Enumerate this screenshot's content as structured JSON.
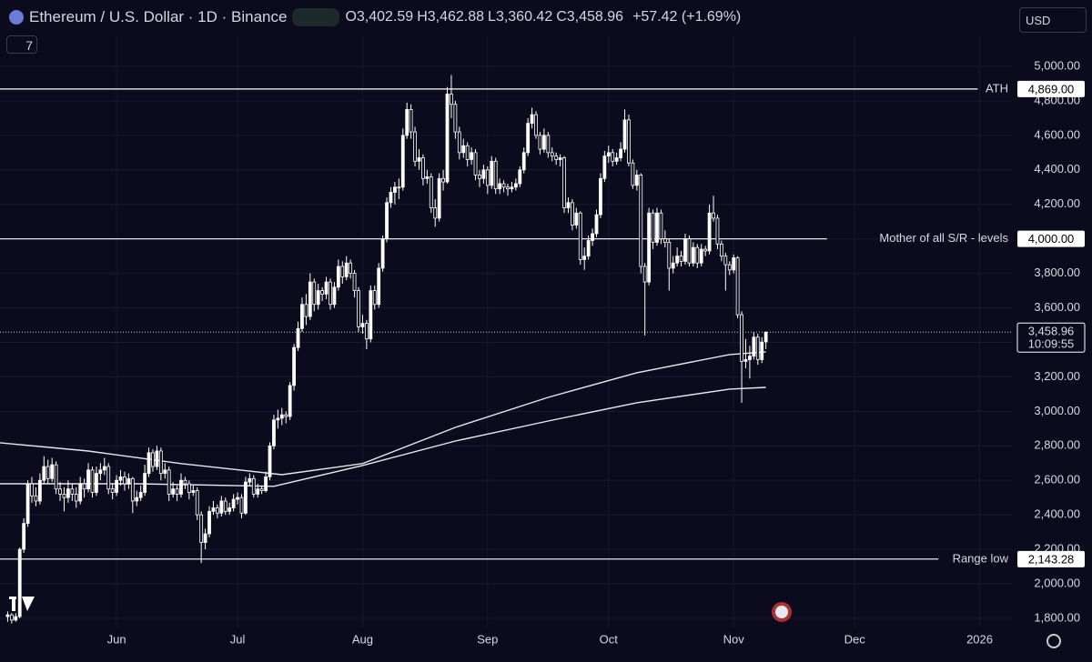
{
  "header": {
    "symbol": "Ethereum / U.S. Dollar · 1D · Binance",
    "ohlc": [
      {
        "key": "O",
        "value": "3,402.59"
      },
      {
        "key": "H",
        "value": "3,462.88"
      },
      {
        "key": "L",
        "value": "3,360.42"
      },
      {
        "key": "C",
        "value": "3,458.96"
      }
    ],
    "change": "+57.42 (+1.69%)",
    "currency": "USD",
    "indicators": "7"
  },
  "chart_data": {
    "type": "candlestick",
    "up_color": "#ffffff",
    "down_color": "#ffffff",
    "grid": true,
    "xlim": [
      -1.9,
      249
    ],
    "xticks": [
      {
        "value": 27,
        "label": "Jun"
      },
      {
        "value": 57,
        "label": "Jul"
      },
      {
        "value": 88,
        "label": "Aug"
      },
      {
        "value": 119,
        "label": "Sep"
      },
      {
        "value": 149,
        "label": "Oct"
      },
      {
        "value": 180,
        "label": "Nov"
      },
      {
        "value": 210,
        "label": "Dec"
      },
      {
        "value": 241,
        "label": "2026"
      }
    ],
    "ylim": [
      1747,
      5174
    ],
    "yticks": [
      {
        "value": 1800,
        "label": "1,800.00"
      },
      {
        "value": 2000,
        "label": "2,000.00"
      },
      {
        "value": 2200,
        "label": "2,200.00"
      },
      {
        "value": 2400,
        "label": "2,400.00"
      },
      {
        "value": 2600,
        "label": "2,600.00"
      },
      {
        "value": 2800,
        "label": "2,800.00"
      },
      {
        "value": 3000,
        "label": "3,000.00"
      },
      {
        "value": 3200,
        "label": "3,200.00"
      },
      {
        "value": 3400,
        "label": "3,400.00"
      },
      {
        "value": 3600,
        "label": "3,600.00"
      },
      {
        "value": 3800,
        "label": "3,800.00"
      },
      {
        "value": 4000,
        "label": "4,000.00"
      },
      {
        "value": 4200,
        "label": "4,200.00"
      },
      {
        "value": 4400,
        "label": "4,400.00"
      },
      {
        "value": 4600,
        "label": "4,600.00"
      },
      {
        "value": 4800,
        "label": "4,800.00"
      },
      {
        "value": 5000,
        "label": "5,000.00"
      }
    ],
    "candles": [
      [
        1810,
        1840,
        1780,
        1820
      ],
      [
        1820,
        1830,
        1770,
        1790
      ],
      [
        1790,
        1830,
        1780,
        1810
      ],
      [
        1810,
        2210,
        1800,
        2200
      ],
      [
        2200,
        2380,
        2180,
        2350
      ],
      [
        2350,
        2600,
        2330,
        2580
      ],
      [
        2580,
        2620,
        2470,
        2510
      ],
      [
        2510,
        2560,
        2450,
        2480
      ],
      [
        2480,
        2640,
        2460,
        2600
      ],
      [
        2600,
        2740,
        2580,
        2680
      ],
      [
        2680,
        2720,
        2580,
        2610
      ],
      [
        2610,
        2730,
        2590,
        2690
      ],
      [
        2690,
        2710,
        2520,
        2550
      ],
      [
        2550,
        2590,
        2480,
        2520
      ],
      [
        2520,
        2560,
        2420,
        2500
      ],
      [
        2500,
        2600,
        2470,
        2550
      ],
      [
        2550,
        2580,
        2480,
        2520
      ],
      [
        2520,
        2560,
        2440,
        2480
      ],
      [
        2480,
        2620,
        2460,
        2580
      ],
      [
        2580,
        2610,
        2500,
        2550
      ],
      [
        2550,
        2700,
        2530,
        2660
      ],
      [
        2660,
        2680,
        2500,
        2530
      ],
      [
        2530,
        2680,
        2510,
        2640
      ],
      [
        2640,
        2700,
        2600,
        2660
      ],
      [
        2660,
        2730,
        2630,
        2680
      ],
      [
        2680,
        2700,
        2520,
        2550
      ],
      [
        2550,
        2580,
        2490,
        2530
      ],
      [
        2530,
        2630,
        2510,
        2600
      ],
      [
        2600,
        2660,
        2570,
        2620
      ],
      [
        2620,
        2650,
        2540,
        2580
      ],
      [
        2580,
        2640,
        2550,
        2610
      ],
      [
        2610,
        2620,
        2410,
        2480
      ],
      [
        2480,
        2540,
        2450,
        2500
      ],
      [
        2500,
        2570,
        2480,
        2530
      ],
      [
        2530,
        2690,
        2510,
        2640
      ],
      [
        2640,
        2790,
        2620,
        2760
      ],
      [
        2760,
        2780,
        2650,
        2680
      ],
      [
        2680,
        2800,
        2660,
        2770
      ],
      [
        2770,
        2790,
        2600,
        2640
      ],
      [
        2640,
        2700,
        2610,
        2660
      ],
      [
        2660,
        2680,
        2480,
        2520
      ],
      [
        2520,
        2590,
        2500,
        2550
      ],
      [
        2550,
        2570,
        2480,
        2520
      ],
      [
        2520,
        2640,
        2500,
        2600
      ],
      [
        2600,
        2620,
        2550,
        2580
      ],
      [
        2580,
        2600,
        2490,
        2530
      ],
      [
        2530,
        2570,
        2510,
        2540
      ],
      [
        2540,
        2560,
        2370,
        2400
      ],
      [
        2400,
        2420,
        2120,
        2240
      ],
      [
        2240,
        2320,
        2200,
        2290
      ],
      [
        2290,
        2450,
        2270,
        2420
      ],
      [
        2420,
        2480,
        2400,
        2440
      ],
      [
        2440,
        2460,
        2380,
        2410
      ],
      [
        2410,
        2510,
        2390,
        2480
      ],
      [
        2480,
        2500,
        2400,
        2420
      ],
      [
        2420,
        2470,
        2400,
        2440
      ],
      [
        2440,
        2520,
        2420,
        2490
      ],
      [
        2490,
        2530,
        2460,
        2500
      ],
      [
        2500,
        2520,
        2380,
        2410
      ],
      [
        2410,
        2620,
        2400,
        2590
      ],
      [
        2590,
        2640,
        2570,
        2610
      ],
      [
        2610,
        2630,
        2500,
        2520
      ],
      [
        2520,
        2580,
        2500,
        2550
      ],
      [
        2550,
        2570,
        2520,
        2540
      ],
      [
        2540,
        2650,
        2530,
        2620
      ],
      [
        2620,
        2820,
        2600,
        2800
      ],
      [
        2800,
        2980,
        2780,
        2950
      ],
      [
        2950,
        3010,
        2900,
        2960
      ],
      [
        2960,
        3020,
        2920,
        2980
      ],
      [
        2980,
        3000,
        2930,
        2970
      ],
      [
        2970,
        3170,
        2950,
        3150
      ],
      [
        3150,
        3390,
        3120,
        3370
      ],
      [
        3370,
        3520,
        3350,
        3480
      ],
      [
        3480,
        3660,
        3460,
        3620
      ],
      [
        3620,
        3680,
        3500,
        3550
      ],
      [
        3550,
        3800,
        3530,
        3750
      ],
      [
        3750,
        3770,
        3580,
        3620
      ],
      [
        3620,
        3740,
        3590,
        3700
      ],
      [
        3700,
        3720,
        3640,
        3680
      ],
      [
        3680,
        3780,
        3650,
        3750
      ],
      [
        3750,
        3770,
        3590,
        3620
      ],
      [
        3620,
        3750,
        3600,
        3720
      ],
      [
        3720,
        3880,
        3700,
        3840
      ],
      [
        3840,
        3870,
        3740,
        3780
      ],
      [
        3780,
        3900,
        3760,
        3860
      ],
      [
        3860,
        3880,
        3770,
        3800
      ],
      [
        3800,
        3820,
        3660,
        3700
      ],
      [
        3700,
        3720,
        3460,
        3490
      ],
      [
        3490,
        3560,
        3450,
        3510
      ],
      [
        3510,
        3530,
        3360,
        3420
      ],
      [
        3420,
        3730,
        3400,
        3700
      ],
      [
        3700,
        3730,
        3590,
        3620
      ],
      [
        3620,
        3860,
        3600,
        3830
      ],
      [
        3830,
        4020,
        3810,
        4000
      ],
      [
        4000,
        4240,
        3980,
        4210
      ],
      [
        4210,
        4300,
        4180,
        4270
      ],
      [
        4270,
        4330,
        4200,
        4300
      ],
      [
        4300,
        4350,
        4230,
        4300
      ],
      [
        4300,
        4640,
        4280,
        4600
      ],
      [
        4600,
        4790,
        4580,
        4750
      ],
      [
        4750,
        4780,
        4580,
        4620
      ],
      [
        4620,
        4650,
        4420,
        4450
      ],
      [
        4450,
        4520,
        4400,
        4470
      ],
      [
        4470,
        4490,
        4310,
        4350
      ],
      [
        4350,
        4400,
        4320,
        4360
      ],
      [
        4360,
        4380,
        4150,
        4180
      ],
      [
        4180,
        4230,
        4070,
        4120
      ],
      [
        4120,
        4380,
        4100,
        4350
      ],
      [
        4350,
        4400,
        4280,
        4330
      ],
      [
        4330,
        4880,
        4320,
        4840
      ],
      [
        4840,
        4950,
        4700,
        4780
      ],
      [
        4780,
        4800,
        4580,
        4620
      ],
      [
        4620,
        4650,
        4460,
        4500
      ],
      [
        4500,
        4580,
        4470,
        4540
      ],
      [
        4540,
        4560,
        4420,
        4460
      ],
      [
        4460,
        4530,
        4430,
        4500
      ],
      [
        4500,
        4520,
        4340,
        4370
      ],
      [
        4370,
        4400,
        4300,
        4350
      ],
      [
        4350,
        4430,
        4320,
        4400
      ],
      [
        4400,
        4420,
        4260,
        4310
      ],
      [
        4310,
        4480,
        4290,
        4450
      ],
      [
        4450,
        4470,
        4260,
        4290
      ],
      [
        4290,
        4350,
        4260,
        4320
      ],
      [
        4320,
        4340,
        4270,
        4300
      ],
      [
        4300,
        4320,
        4250,
        4290
      ],
      [
        4290,
        4330,
        4270,
        4300
      ],
      [
        4300,
        4350,
        4280,
        4320
      ],
      [
        4320,
        4420,
        4300,
        4400
      ],
      [
        4400,
        4530,
        4380,
        4500
      ],
      [
        4500,
        4700,
        4480,
        4670
      ],
      [
        4670,
        4760,
        4640,
        4720
      ],
      [
        4720,
        4740,
        4580,
        4600
      ],
      [
        4600,
        4620,
        4490,
        4520
      ],
      [
        4520,
        4640,
        4500,
        4600
      ],
      [
        4600,
        4620,
        4470,
        4500
      ],
      [
        4500,
        4530,
        4450,
        4480
      ],
      [
        4480,
        4500,
        4430,
        4460
      ],
      [
        4460,
        4490,
        4420,
        4470
      ],
      [
        4470,
        4480,
        4150,
        4180
      ],
      [
        4180,
        4240,
        4150,
        4210
      ],
      [
        4210,
        4230,
        4050,
        4080
      ],
      [
        4080,
        4180,
        4060,
        4150
      ],
      [
        4150,
        4160,
        3850,
        3880
      ],
      [
        3880,
        3950,
        3820,
        3900
      ],
      [
        3900,
        4020,
        3880,
        3990
      ],
      [
        3990,
        4060,
        3960,
        4030
      ],
      [
        4030,
        4170,
        4010,
        4140
      ],
      [
        4140,
        4380,
        4120,
        4350
      ],
      [
        4350,
        4510,
        4330,
        4480
      ],
      [
        4480,
        4540,
        4440,
        4500
      ],
      [
        4500,
        4520,
        4420,
        4450
      ],
      [
        4450,
        4500,
        4430,
        4470
      ],
      [
        4470,
        4560,
        4450,
        4520
      ],
      [
        4520,
        4750,
        4500,
        4690
      ],
      [
        4690,
        4720,
        4420,
        4440
      ],
      [
        4440,
        4460,
        4290,
        4310
      ],
      [
        4310,
        4400,
        4280,
        4370
      ],
      [
        4370,
        4380,
        3800,
        3840
      ],
      [
        3840,
        3860,
        3440,
        3750
      ],
      [
        3750,
        4180,
        3730,
        4150
      ],
      [
        4150,
        4170,
        3940,
        3980
      ],
      [
        3980,
        4180,
        3960,
        4150
      ],
      [
        4150,
        4170,
        3970,
        4000
      ],
      [
        4000,
        4050,
        3950,
        3980
      ],
      [
        3980,
        4000,
        3700,
        3830
      ],
      [
        3830,
        3900,
        3800,
        3860
      ],
      [
        3860,
        3950,
        3840,
        3900
      ],
      [
        3900,
        3930,
        3840,
        3870
      ],
      [
        3870,
        4030,
        3850,
        4000
      ],
      [
        4000,
        4020,
        3840,
        3860
      ],
      [
        3860,
        3980,
        3840,
        3950
      ],
      [
        3950,
        3970,
        3830,
        3860
      ],
      [
        3860,
        3970,
        3840,
        3940
      ],
      [
        3940,
        3960,
        3900,
        3930
      ],
      [
        3930,
        4200,
        3910,
        4150
      ],
      [
        4150,
        4250,
        4100,
        4120
      ],
      [
        4120,
        4140,
        3940,
        3970
      ],
      [
        3970,
        3990,
        3870,
        3900
      ],
      [
        3900,
        3920,
        3700,
        3850
      ],
      [
        3850,
        3870,
        3790,
        3820
      ],
      [
        3820,
        3910,
        3800,
        3890
      ],
      [
        3890,
        3900,
        3540,
        3560
      ],
      [
        3560,
        3580,
        3050,
        3290
      ],
      [
        3290,
        3420,
        3250,
        3300
      ],
      [
        3300,
        3380,
        3190,
        3320
      ],
      [
        3320,
        3460,
        3300,
        3430
      ],
      [
        3430,
        3450,
        3270,
        3300
      ],
      [
        3300,
        3430,
        3280,
        3401.54
      ],
      [
        3402.59,
        3462.88,
        3360.42,
        3458.96
      ]
    ],
    "lines": [
      {
        "color": "#e8e8ee",
        "x": [
          -2,
          20,
          43,
          68,
          88,
          111,
          134,
          156,
          179,
          188
        ],
        "values": [
          2818,
          2770,
          2697,
          2633,
          2697,
          2907,
          3081,
          3224,
          3329,
          3345
        ]
      },
      {
        "color": "#e8e8ee",
        "x": [
          -2,
          32,
          66,
          88,
          111,
          134,
          156,
          179,
          188
        ],
        "values": [
          2580,
          2580,
          2565,
          2686,
          2828,
          2944,
          3050,
          3129,
          3139
        ]
      }
    ],
    "levels": [
      {
        "value": 4869,
        "label": "4,869.00",
        "text": "ATH"
      },
      {
        "value": 4000,
        "label": "4,000.00",
        "text": "Mother of all S/R - levels"
      },
      {
        "value": 2143.28,
        "label": "2,143.28",
        "text": "Range low"
      }
    ],
    "last_price": {
      "value": 3458.96,
      "label": "3,458.96",
      "countdown": "10:09:55"
    }
  }
}
